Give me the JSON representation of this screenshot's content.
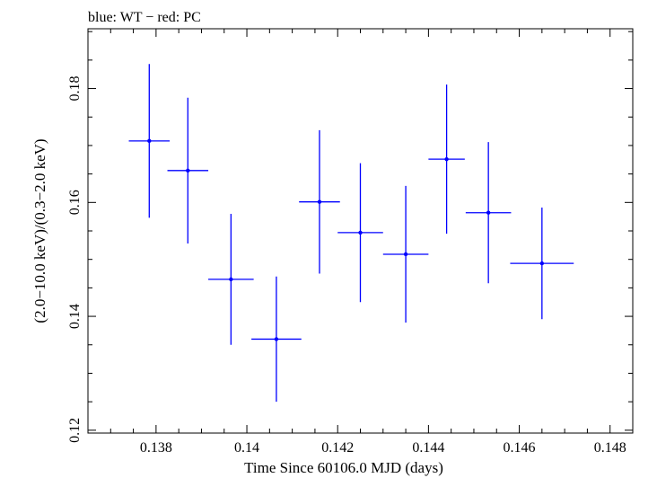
{
  "chart_data": {
    "type": "scatter",
    "title": "blue: WT − red: PC",
    "xlabel": "Time Since 60106.0 MJD (days)",
    "ylabel": "(2.0−10.0 keV)/(0.3−2.0 keV)",
    "xlim": [
      0.1365,
      0.1485
    ],
    "ylim": [
      0.1195,
      0.1905
    ],
    "x_ticks": [
      0.138,
      0.14,
      0.142,
      0.144,
      0.146,
      0.148
    ],
    "x_tick_labels": [
      "0.138",
      "0.14",
      "0.142",
      "0.144",
      "0.146",
      "0.148"
    ],
    "y_ticks": [
      0.12,
      0.14,
      0.16,
      0.18
    ],
    "y_tick_labels": [
      "0.12",
      "0.14",
      "0.16",
      "0.18"
    ],
    "grid": false,
    "series": [
      {
        "color": "#0000ff",
        "points": [
          {
            "x": 0.13785,
            "xerr": 0.00045,
            "y": 0.1708,
            "yerr_lo": 0.0135,
            "yerr_hi": 0.0135
          },
          {
            "x": 0.1387,
            "xerr": 0.00045,
            "y": 0.1656,
            "yerr_lo": 0.0128,
            "yerr_hi": 0.0128
          },
          {
            "x": 0.13965,
            "xerr": 0.0005,
            "y": 0.1465,
            "yerr_lo": 0.0115,
            "yerr_hi": 0.0115
          },
          {
            "x": 0.14065,
            "xerr": 0.00055,
            "y": 0.136,
            "yerr_lo": 0.011,
            "yerr_hi": 0.011
          },
          {
            "x": 0.1416,
            "xerr": 0.00045,
            "y": 0.1601,
            "yerr_lo": 0.0126,
            "yerr_hi": 0.0126
          },
          {
            "x": 0.1425,
            "xerr": 0.0005,
            "y": 0.1547,
            "yerr_lo": 0.0122,
            "yerr_hi": 0.0122
          },
          {
            "x": 0.1435,
            "xerr": 0.0005,
            "y": 0.1509,
            "yerr_lo": 0.012,
            "yerr_hi": 0.012
          },
          {
            "x": 0.1444,
            "xerr": 0.0004,
            "y": 0.1676,
            "yerr_lo": 0.0131,
            "yerr_hi": 0.0131
          },
          {
            "x": 0.14532,
            "xerr": 0.0005,
            "y": 0.1582,
            "yerr_lo": 0.0124,
            "yerr_hi": 0.0124
          },
          {
            "x": 0.1465,
            "xerr": 0.0007,
            "y": 0.1493,
            "yerr_lo": 0.0098,
            "yerr_hi": 0.0098
          }
        ]
      }
    ]
  }
}
